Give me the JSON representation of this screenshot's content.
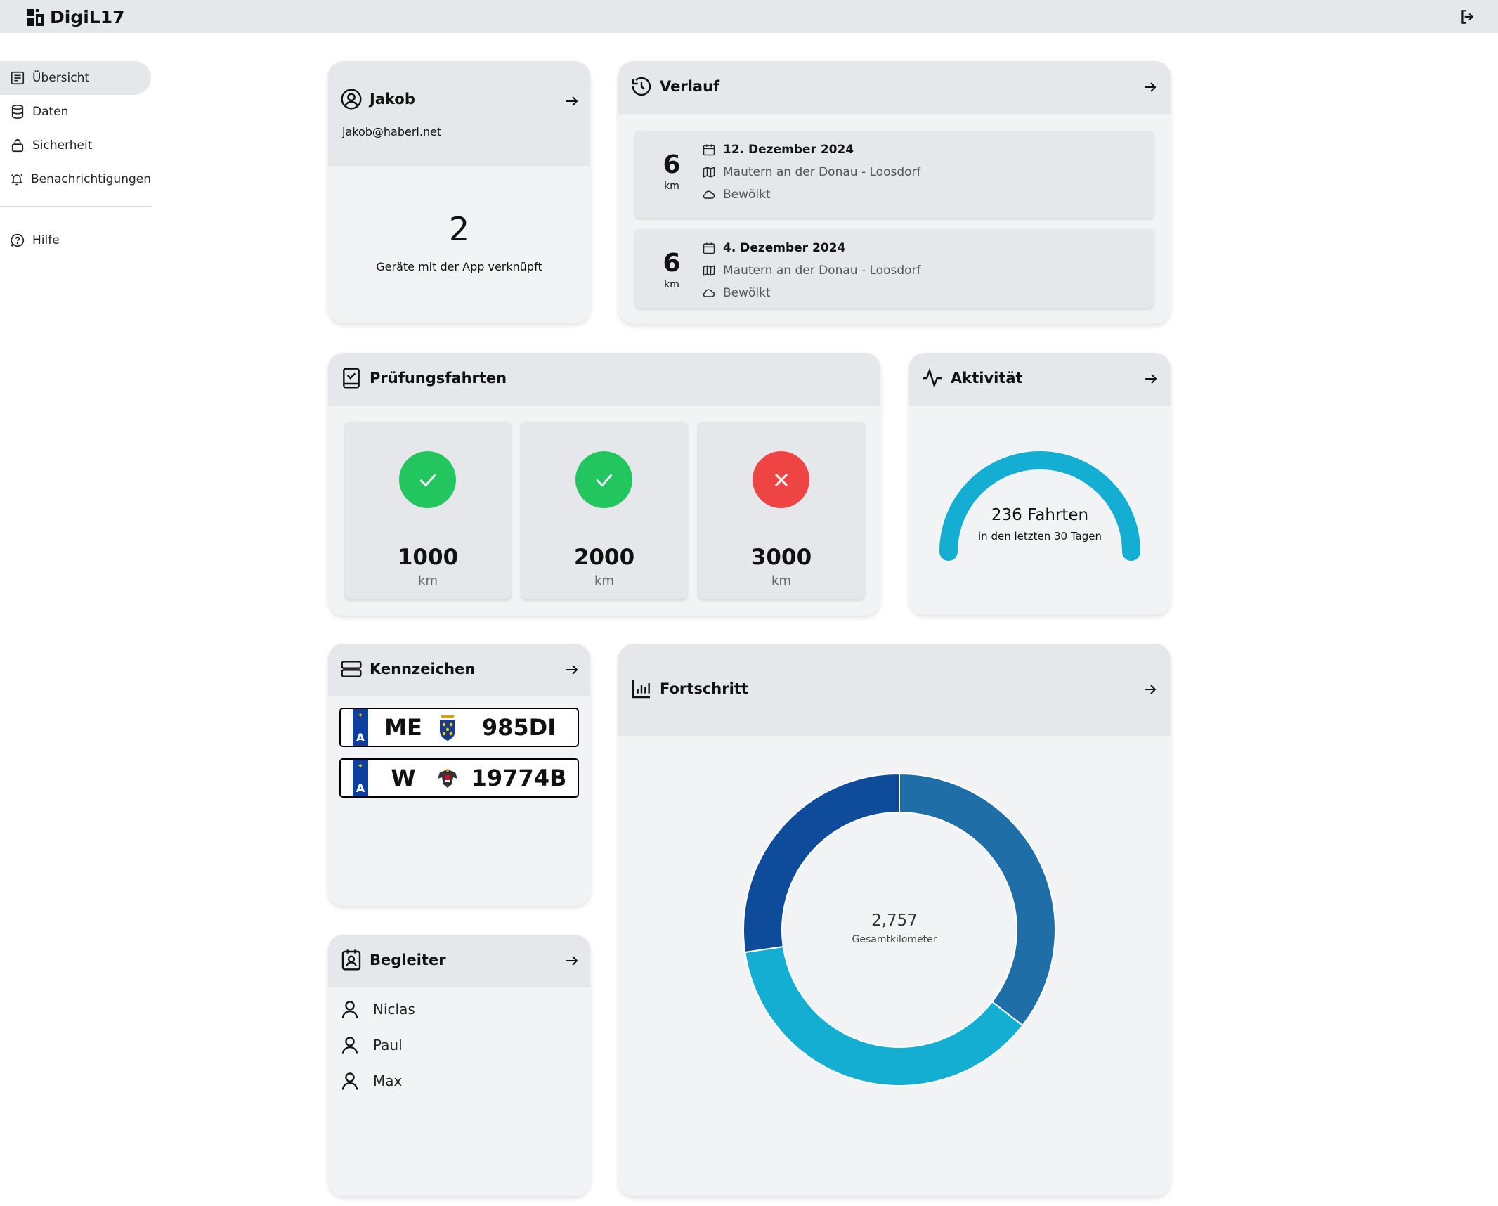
{
  "app": {
    "name": "DigiL17"
  },
  "sidebar": {
    "items": [
      {
        "label": "Übersicht",
        "icon": "document-list-icon",
        "active": true
      },
      {
        "label": "Daten",
        "icon": "database-icon"
      },
      {
        "label": "Sicherheit",
        "icon": "lock-icon"
      },
      {
        "label": "Benachrichtigungen",
        "icon": "bell-icon"
      }
    ],
    "help": {
      "label": "Hilfe",
      "icon": "help-bubble-icon"
    }
  },
  "profile": {
    "name": "Jakob",
    "email": "jakob@haberl.net",
    "devices_count": "2",
    "devices_label": "Geräte mit der App verknüpft"
  },
  "history": {
    "title": "Verlauf",
    "trips": [
      {
        "km": "6",
        "unit": "km",
        "date": "12. Dezember 2024",
        "route": "Mautern an der Donau - Loosdorf",
        "weather": "Bewölkt"
      },
      {
        "km": "6",
        "unit": "km",
        "date": "4. Dezember 2024",
        "route": "Mautern an der Donau - Loosdorf",
        "weather": "Bewölkt"
      }
    ]
  },
  "exams": {
    "title": "Prüfungsfahrten",
    "items": [
      {
        "value": "1000",
        "unit": "km",
        "status": "passed",
        "color": "#22c55e"
      },
      {
        "value": "2000",
        "unit": "km",
        "status": "passed",
        "color": "#22c55e"
      },
      {
        "value": "3000",
        "unit": "km",
        "status": "failed",
        "color": "#ef4444"
      }
    ]
  },
  "activity": {
    "title": "Aktivität",
    "value": "236 Fahrten",
    "sub": "in den letzten 30 Tagen",
    "color": "#14aed2"
  },
  "plates": {
    "title": "Kennzeichen",
    "items": [
      {
        "country": "A",
        "district": "ME",
        "number": "985DI",
        "crest": "lower-austria-crest-icon"
      },
      {
        "country": "A",
        "district": "W",
        "number": "19774B",
        "crest": "austria-eagle-crest-icon"
      }
    ]
  },
  "companions": {
    "title": "Begleiter",
    "items": [
      "Niclas",
      "Paul",
      "Max"
    ]
  },
  "progress": {
    "title": "Fortschritt",
    "total": "2,757",
    "total_label": "Gesamtkilometer"
  },
  "chart_data": {
    "type": "pie",
    "variant": "donut",
    "center_value": 2757,
    "center_label": "Gesamtkilometer",
    "slices": [
      {
        "share": 0.355,
        "color": "#1f6ea8"
      },
      {
        "share": 0.372,
        "color": "#14aed2"
      },
      {
        "share": 0.273,
        "color": "#0f4b9b"
      }
    ]
  }
}
